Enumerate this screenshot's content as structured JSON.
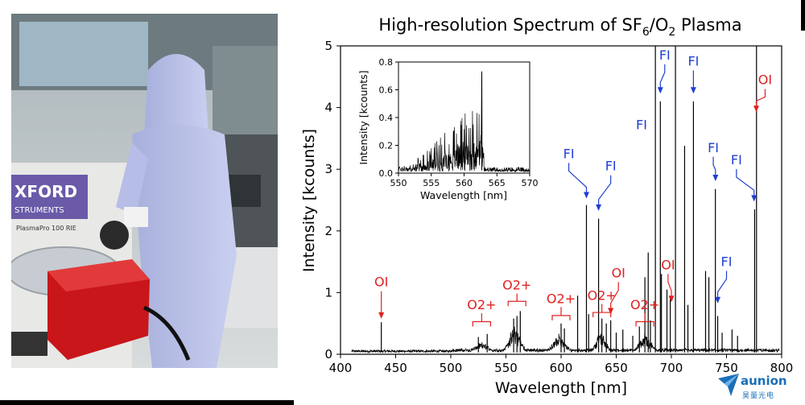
{
  "photo": {
    "label_brand": "XFORD",
    "label_brand_sub": "STRUMENTS",
    "label_model": "PlasmaPro 100 RIE"
  },
  "logo": {
    "name": "aunion",
    "sub": "昊量光电"
  },
  "chart_data": {
    "type": "line",
    "title": "High-resolution Spectrum of SF6/O2 Plasma",
    "title_parts": {
      "main": "High-resolution Spectrum of SF",
      "sub1": "6",
      "mid": "/O",
      "sub2": "2",
      "end": " Plasma"
    },
    "xlabel": "Wavelength [nm]",
    "ylabel": "Intensity [kcounts]",
    "xlim": [
      400,
      800
    ],
    "ylim": [
      0,
      5
    ],
    "xticks": [
      400,
      450,
      500,
      550,
      600,
      650,
      700,
      750,
      800
    ],
    "yticks": [
      0,
      1,
      2,
      3,
      4,
      5
    ],
    "grid": false,
    "series_color": "#000000",
    "peaks": [
      {
        "x": 437,
        "y": 0.52
      },
      {
        "x": 525,
        "y": 0.28
      },
      {
        "x": 533,
        "y": 0.33
      },
      {
        "x": 557,
        "y": 0.58
      },
      {
        "x": 560,
        "y": 0.62
      },
      {
        "x": 563,
        "y": 0.7
      },
      {
        "x": 600,
        "y": 0.5
      },
      {
        "x": 603,
        "y": 0.42
      },
      {
        "x": 615,
        "y": 0.95
      },
      {
        "x": 623,
        "y": 2.42
      },
      {
        "x": 625,
        "y": 0.65
      },
      {
        "x": 634,
        "y": 2.2
      },
      {
        "x": 637,
        "y": 0.58
      },
      {
        "x": 641,
        "y": 0.5
      },
      {
        "x": 645,
        "y": 0.55
      },
      {
        "x": 650,
        "y": 0.35
      },
      {
        "x": 656,
        "y": 0.4
      },
      {
        "x": 665,
        "y": 0.3
      },
      {
        "x": 671,
        "y": 0.45
      },
      {
        "x": 676,
        "y": 1.25
      },
      {
        "x": 679,
        "y": 1.65
      },
      {
        "x": 681,
        "y": 0.55
      },
      {
        "x": 685.5,
        "y": 5.0
      },
      {
        "x": 690,
        "y": 4.1
      },
      {
        "x": 691,
        "y": 1.3
      },
      {
        "x": 696,
        "y": 1.05
      },
      {
        "x": 699,
        "y": 0.9
      },
      {
        "x": 703.7,
        "y": 5.0
      },
      {
        "x": 712,
        "y": 3.38
      },
      {
        "x": 715,
        "y": 0.8
      },
      {
        "x": 720,
        "y": 4.1
      },
      {
        "x": 731,
        "y": 1.35
      },
      {
        "x": 734,
        "y": 1.25
      },
      {
        "x": 739.9,
        "y": 2.68
      },
      {
        "x": 742,
        "y": 0.62
      },
      {
        "x": 746,
        "y": 0.35
      },
      {
        "x": 755,
        "y": 0.4
      },
      {
        "x": 760,
        "y": 0.3
      },
      {
        "x": 775.5,
        "y": 2.35
      },
      {
        "x": 777.2,
        "y": 5.0
      }
    ],
    "bands": [
      {
        "center": 558,
        "width": 10,
        "level": 0.35
      },
      {
        "center": 598,
        "width": 10,
        "level": 0.22
      },
      {
        "center": 636,
        "width": 8,
        "level": 0.28
      },
      {
        "center": 676,
        "width": 10,
        "level": 0.22
      },
      {
        "center": 528,
        "width": 10,
        "level": 0.1
      }
    ],
    "annotations": [
      {
        "text": "OI",
        "x": 437,
        "y": 0.55,
        "color": "#e02020",
        "dir": "down",
        "tx": 437,
        "ty": 1.1
      },
      {
        "text": "O2+",
        "x": 528,
        "y": 0.45,
        "color": "#e02020",
        "dir": "bracket",
        "tx": 528,
        "ty": 0.73
      },
      {
        "text": "O2+",
        "x": 560,
        "y": 0.78,
        "color": "#e02020",
        "dir": "bracket",
        "tx": 560,
        "ty": 1.05
      },
      {
        "text": "O2+",
        "x": 600,
        "y": 0.55,
        "color": "#e02020",
        "dir": "bracket",
        "tx": 600,
        "ty": 0.83
      },
      {
        "text": "O2+",
        "x": 637,
        "y": 0.6,
        "color": "#e02020",
        "dir": "bracket",
        "tx": 637,
        "ty": 0.88
      },
      {
        "text": "O2+",
        "x": 676,
        "y": 0.45,
        "color": "#e02020",
        "dir": "bracket",
        "tx": 676,
        "ty": 0.73
      },
      {
        "text": "OI",
        "x": 645,
        "y": 0.62,
        "color": "#e02020",
        "dir": "down",
        "tx": 652,
        "ty": 1.25
      },
      {
        "text": "OI",
        "x": 700,
        "y": 0.82,
        "color": "#e02020",
        "dir": "down",
        "tx": 697,
        "ty": 1.38
      },
      {
        "text": "OI",
        "x": 777,
        "y": 3.9,
        "color": "#e02020",
        "dir": "down",
        "tx": 785,
        "ty": 4.38
      },
      {
        "text": "FI",
        "x": 623,
        "y": 2.5,
        "color": "#1f3fd0",
        "dir": "down",
        "tx": 607,
        "ty": 3.18
      },
      {
        "text": "FI",
        "x": 634,
        "y": 2.3,
        "color": "#1f3fd0",
        "dir": "down",
        "tx": 645,
        "ty": 2.98
      },
      {
        "text": "FI",
        "x": 690,
        "y": 4.2,
        "color": "#1f3fd0",
        "dir": "down",
        "tx": 694,
        "ty": 4.78
      },
      {
        "text": "FI",
        "x": 685,
        "y": 3.7,
        "color": "#1f3fd0",
        "dir": "none",
        "tx": 673,
        "ty": 3.65
      },
      {
        "text": "FI",
        "x": 720,
        "y": 4.2,
        "color": "#1f3fd0",
        "dir": "down",
        "tx": 720,
        "ty": 4.68
      },
      {
        "text": "FI",
        "x": 740,
        "y": 2.78,
        "color": "#1f3fd0",
        "dir": "down",
        "tx": 738,
        "ty": 3.28
      },
      {
        "text": "FI",
        "x": 775,
        "y": 2.45,
        "color": "#1f3fd0",
        "dir": "down",
        "tx": 759,
        "ty": 3.08
      },
      {
        "text": "FI",
        "x": 742,
        "y": 0.8,
        "color": "#1f3fd0",
        "dir": "down",
        "tx": 750,
        "ty": 1.43
      }
    ],
    "inset": {
      "xlabel": "Wavelength [nm]",
      "ylabel": "Intensity [kcounts]",
      "xlim": [
        550,
        570
      ],
      "ylim": [
        0,
        0.8
      ],
      "xticks": [
        550,
        555,
        560,
        565,
        570
      ],
      "yticks": [
        0.0,
        0.2,
        0.4,
        0.6,
        0.8
      ],
      "max_peak": {
        "x": 562.7,
        "y": 0.73
      }
    }
  }
}
